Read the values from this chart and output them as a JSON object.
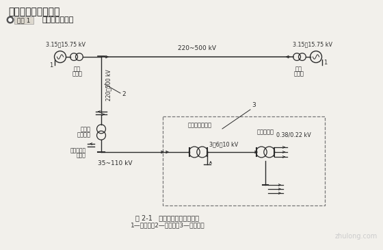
{
  "title1": "一、供电系统的组成",
  "title2": "电力系统的组成",
  "fig_caption": "图 2-1   电力系统的组成示意图",
  "fig_note": "1—发电厂；2—电力网；3—配电系统",
  "bg_color": "#f2f0eb",
  "line_color": "#2a2a2a",
  "watermark": "zhulong.com",
  "label_2": "2",
  "label_3": "3",
  "label_220_500_horiz": "220~500 kV",
  "label_315_1575_left": "3.15～15.75 kV",
  "label_315_1575_right": "3.15～15.75 kV",
  "label_220_500_vert": "220～500 kV",
  "label_35_110": "35~110 kV",
  "label_3_6_10": "3、6、10 kV",
  "label_038_022": "0.38/0.22 kV",
  "label_boost_left": "升压\n变电站",
  "label_boost_right": "升压\n变电站",
  "label_regional": "地区降\n压变电站",
  "label_others": "至其他企业\n或城镇",
  "label_large_subst": "大型建筑变电站",
  "label_building_subst": "楼宇变电站",
  "label_1_left": "1",
  "label_1_right": "1"
}
